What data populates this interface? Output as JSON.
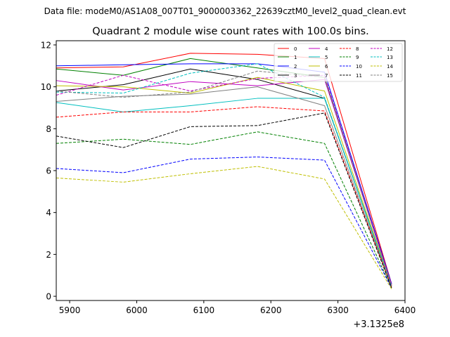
{
  "figure": {
    "suptitle": "Data file: modeM0/AS1A08_007T01_9000003362_22639cztM0_level2_quad_clean.evt"
  },
  "chart_data": {
    "type": "line",
    "title": "Quadrant 2 module wise count rates with 100.0s bins.",
    "xlabel": "",
    "ylabel": "",
    "x_offset_label": "+3.1325e8",
    "xlim": [
      5880,
      6400
    ],
    "ylim": [
      -0.2,
      12.2
    ],
    "xticks": [
      5900,
      6000,
      6100,
      6200,
      6300,
      6400
    ],
    "xtick_labels": [
      "5900",
      "6000",
      "6100",
      "6200",
      "6300",
      "6400"
    ],
    "yticks": [
      0,
      2,
      4,
      6,
      8,
      10,
      12
    ],
    "ytick_labels": [
      "0",
      "2",
      "4",
      "6",
      "8",
      "10",
      "12"
    ],
    "grid": false,
    "legend_position": "top-right",
    "x": [
      5880,
      5980,
      6080,
      6180,
      6280,
      6380
    ],
    "series": [
      {
        "name": "0",
        "color": "#ff0000",
        "dash": "solid",
        "values": [
          10.9,
          10.95,
          11.6,
          11.55,
          11.35,
          0.6
        ]
      },
      {
        "name": "1",
        "color": "#008000",
        "dash": "solid",
        "values": [
          10.85,
          10.55,
          11.35,
          10.9,
          10.45,
          0.55
        ]
      },
      {
        "name": "2",
        "color": "#0000ff",
        "dash": "solid",
        "values": [
          11.0,
          11.05,
          11.1,
          11.1,
          10.7,
          0.6
        ]
      },
      {
        "name": "3",
        "color": "#000000",
        "dash": "solid",
        "values": [
          9.8,
          10.1,
          10.85,
          10.35,
          9.45,
          0.5
        ]
      },
      {
        "name": "4",
        "color": "#c000c0",
        "dash": "solid",
        "values": [
          10.3,
          9.85,
          10.25,
          10.05,
          10.35,
          0.55
        ]
      },
      {
        "name": "5",
        "color": "#00bfbf",
        "dash": "solid",
        "values": [
          9.25,
          8.8,
          9.1,
          9.45,
          9.45,
          0.5
        ]
      },
      {
        "name": "6",
        "color": "#bfbf00",
        "dash": "solid",
        "values": [
          10.05,
          10.0,
          9.7,
          10.45,
          9.8,
          0.5
        ]
      },
      {
        "name": "7",
        "color": "#808080",
        "dash": "solid",
        "values": [
          9.3,
          9.55,
          9.65,
          10.0,
          9.1,
          0.45
        ]
      },
      {
        "name": "8",
        "color": "#ff0000",
        "dash": "dashed",
        "values": [
          8.55,
          8.8,
          8.8,
          9.05,
          8.85,
          0.45
        ]
      },
      {
        "name": "9",
        "color": "#008000",
        "dash": "dashed",
        "values": [
          7.3,
          7.5,
          7.25,
          7.85,
          7.3,
          0.4
        ]
      },
      {
        "name": "10",
        "color": "#0000ff",
        "dash": "dashed",
        "values": [
          6.1,
          5.9,
          6.55,
          6.65,
          6.5,
          0.4
        ]
      },
      {
        "name": "11",
        "color": "#000000",
        "dash": "dashed",
        "values": [
          7.65,
          7.1,
          8.1,
          8.15,
          8.75,
          0.4
        ]
      },
      {
        "name": "12",
        "color": "#c000c0",
        "dash": "dashed",
        "values": [
          9.6,
          10.55,
          9.8,
          10.4,
          10.55,
          0.55
        ]
      },
      {
        "name": "13",
        "color": "#00bfbf",
        "dash": "dashed",
        "values": [
          9.75,
          9.7,
          10.65,
          11.1,
          9.5,
          0.5
        ]
      },
      {
        "name": "14",
        "color": "#bfbf00",
        "dash": "dashed",
        "values": [
          5.65,
          5.45,
          5.85,
          6.2,
          5.6,
          0.35
        ]
      },
      {
        "name": "15",
        "color": "#808080",
        "dash": "dashed",
        "values": [
          9.8,
          9.5,
          9.75,
          10.75,
          10.45,
          0.5
        ]
      }
    ]
  }
}
